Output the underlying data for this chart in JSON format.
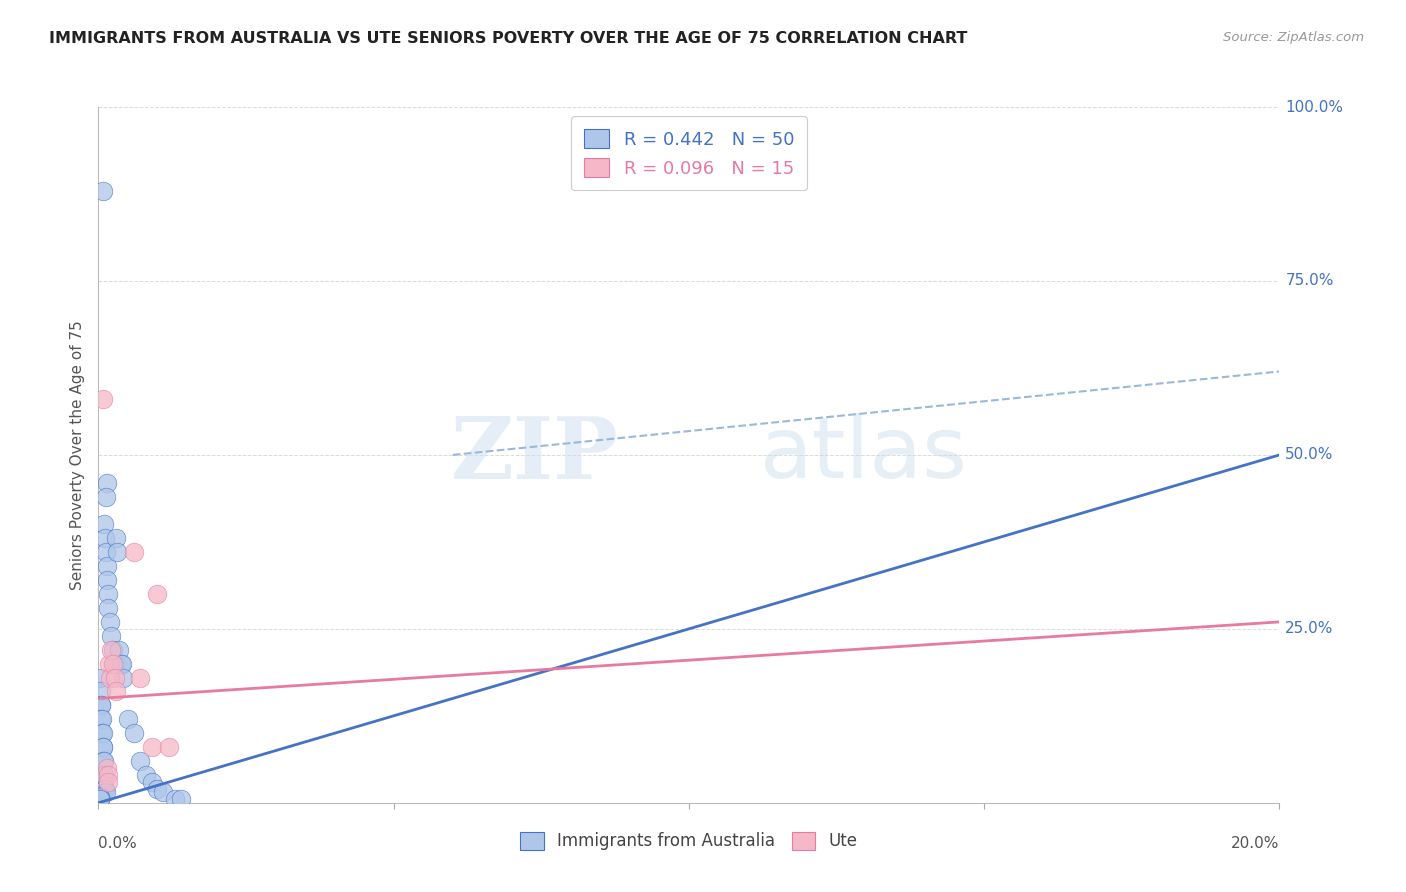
{
  "title": "IMMIGRANTS FROM AUSTRALIA VS UTE SENIORS POVERTY OVER THE AGE OF 75 CORRELATION CHART",
  "source": "Source: ZipAtlas.com",
  "ylabel": "Seniors Poverty Over the Age of 75",
  "blue_color": "#aec6e8",
  "blue_line_color": "#4472c4",
  "pink_color": "#f4b8c8",
  "pink_line_color": "#e87aa0",
  "dash_line_color": "#9ab8d8",
  "grid_color": "#d8d8d8",
  "right_axis_color": "#4472c4",
  "blue_scatter": [
    [
      0.0008,
      0.88
    ],
    [
      0.0015,
      0.46
    ],
    [
      0.0012,
      0.44
    ],
    [
      0.001,
      0.4
    ],
    [
      0.0011,
      0.38
    ],
    [
      0.0013,
      0.36
    ],
    [
      0.0014,
      0.34
    ],
    [
      0.0015,
      0.32
    ],
    [
      0.0016,
      0.3
    ],
    [
      0.0017,
      0.28
    ],
    [
      0.002,
      0.26
    ],
    [
      0.0022,
      0.24
    ],
    [
      0.0025,
      0.22
    ],
    [
      0.0028,
      0.2
    ],
    [
      0.003,
      0.38
    ],
    [
      0.0032,
      0.36
    ],
    [
      0.0035,
      0.22
    ],
    [
      0.0038,
      0.2
    ],
    [
      0.004,
      0.2
    ],
    [
      0.0042,
      0.18
    ],
    [
      0.0003,
      0.18
    ],
    [
      0.0004,
      0.16
    ],
    [
      0.0004,
      0.14
    ],
    [
      0.0005,
      0.14
    ],
    [
      0.0005,
      0.12
    ],
    [
      0.0006,
      0.12
    ],
    [
      0.0006,
      0.1
    ],
    [
      0.0007,
      0.1
    ],
    [
      0.0007,
      0.08
    ],
    [
      0.0008,
      0.08
    ],
    [
      0.0008,
      0.06
    ],
    [
      0.0009,
      0.06
    ],
    [
      0.0009,
      0.04
    ],
    [
      0.001,
      0.04
    ],
    [
      0.001,
      0.02
    ],
    [
      0.0011,
      0.02
    ],
    [
      0.0012,
      0.015
    ],
    [
      0.0001,
      0.01
    ],
    [
      0.0002,
      0.008
    ],
    [
      0.0002,
      0.006
    ],
    [
      0.0003,
      0.005
    ],
    [
      0.005,
      0.12
    ],
    [
      0.006,
      0.1
    ],
    [
      0.007,
      0.06
    ],
    [
      0.008,
      0.04
    ],
    [
      0.009,
      0.03
    ],
    [
      0.01,
      0.02
    ],
    [
      0.011,
      0.015
    ],
    [
      0.013,
      0.005
    ],
    [
      0.014,
      0.005
    ]
  ],
  "pink_scatter": [
    [
      0.0008,
      0.58
    ],
    [
      0.0018,
      0.2
    ],
    [
      0.002,
      0.18
    ],
    [
      0.0022,
      0.22
    ],
    [
      0.0025,
      0.2
    ],
    [
      0.0028,
      0.18
    ],
    [
      0.003,
      0.16
    ],
    [
      0.0015,
      0.05
    ],
    [
      0.0016,
      0.04
    ],
    [
      0.0017,
      0.03
    ],
    [
      0.006,
      0.36
    ],
    [
      0.007,
      0.18
    ],
    [
      0.009,
      0.08
    ],
    [
      0.01,
      0.3
    ],
    [
      0.012,
      0.08
    ]
  ],
  "blue_line_x": [
    0.0,
    0.2
  ],
  "blue_line_y": [
    0.0,
    0.5
  ],
  "dash_line_x": [
    0.06,
    0.2
  ],
  "dash_line_y": [
    0.5,
    0.62
  ],
  "pink_line_x": [
    0.0,
    0.2
  ],
  "pink_line_y": [
    0.15,
    0.26
  ],
  "watermark_zip": "ZIP",
  "watermark_atlas": "atlas",
  "xlim": [
    0.0,
    0.2
  ],
  "ylim": [
    0.0,
    1.0
  ],
  "xticks": [
    0.0,
    0.05,
    0.1,
    0.15,
    0.2
  ],
  "yticks": [
    0.0,
    0.25,
    0.5,
    0.75,
    1.0
  ],
  "right_yticklabels": [
    "",
    "25.0%",
    "50.0%",
    "75.0%",
    "100.0%"
  ],
  "figsize": [
    14.06,
    8.92
  ],
  "dpi": 100
}
